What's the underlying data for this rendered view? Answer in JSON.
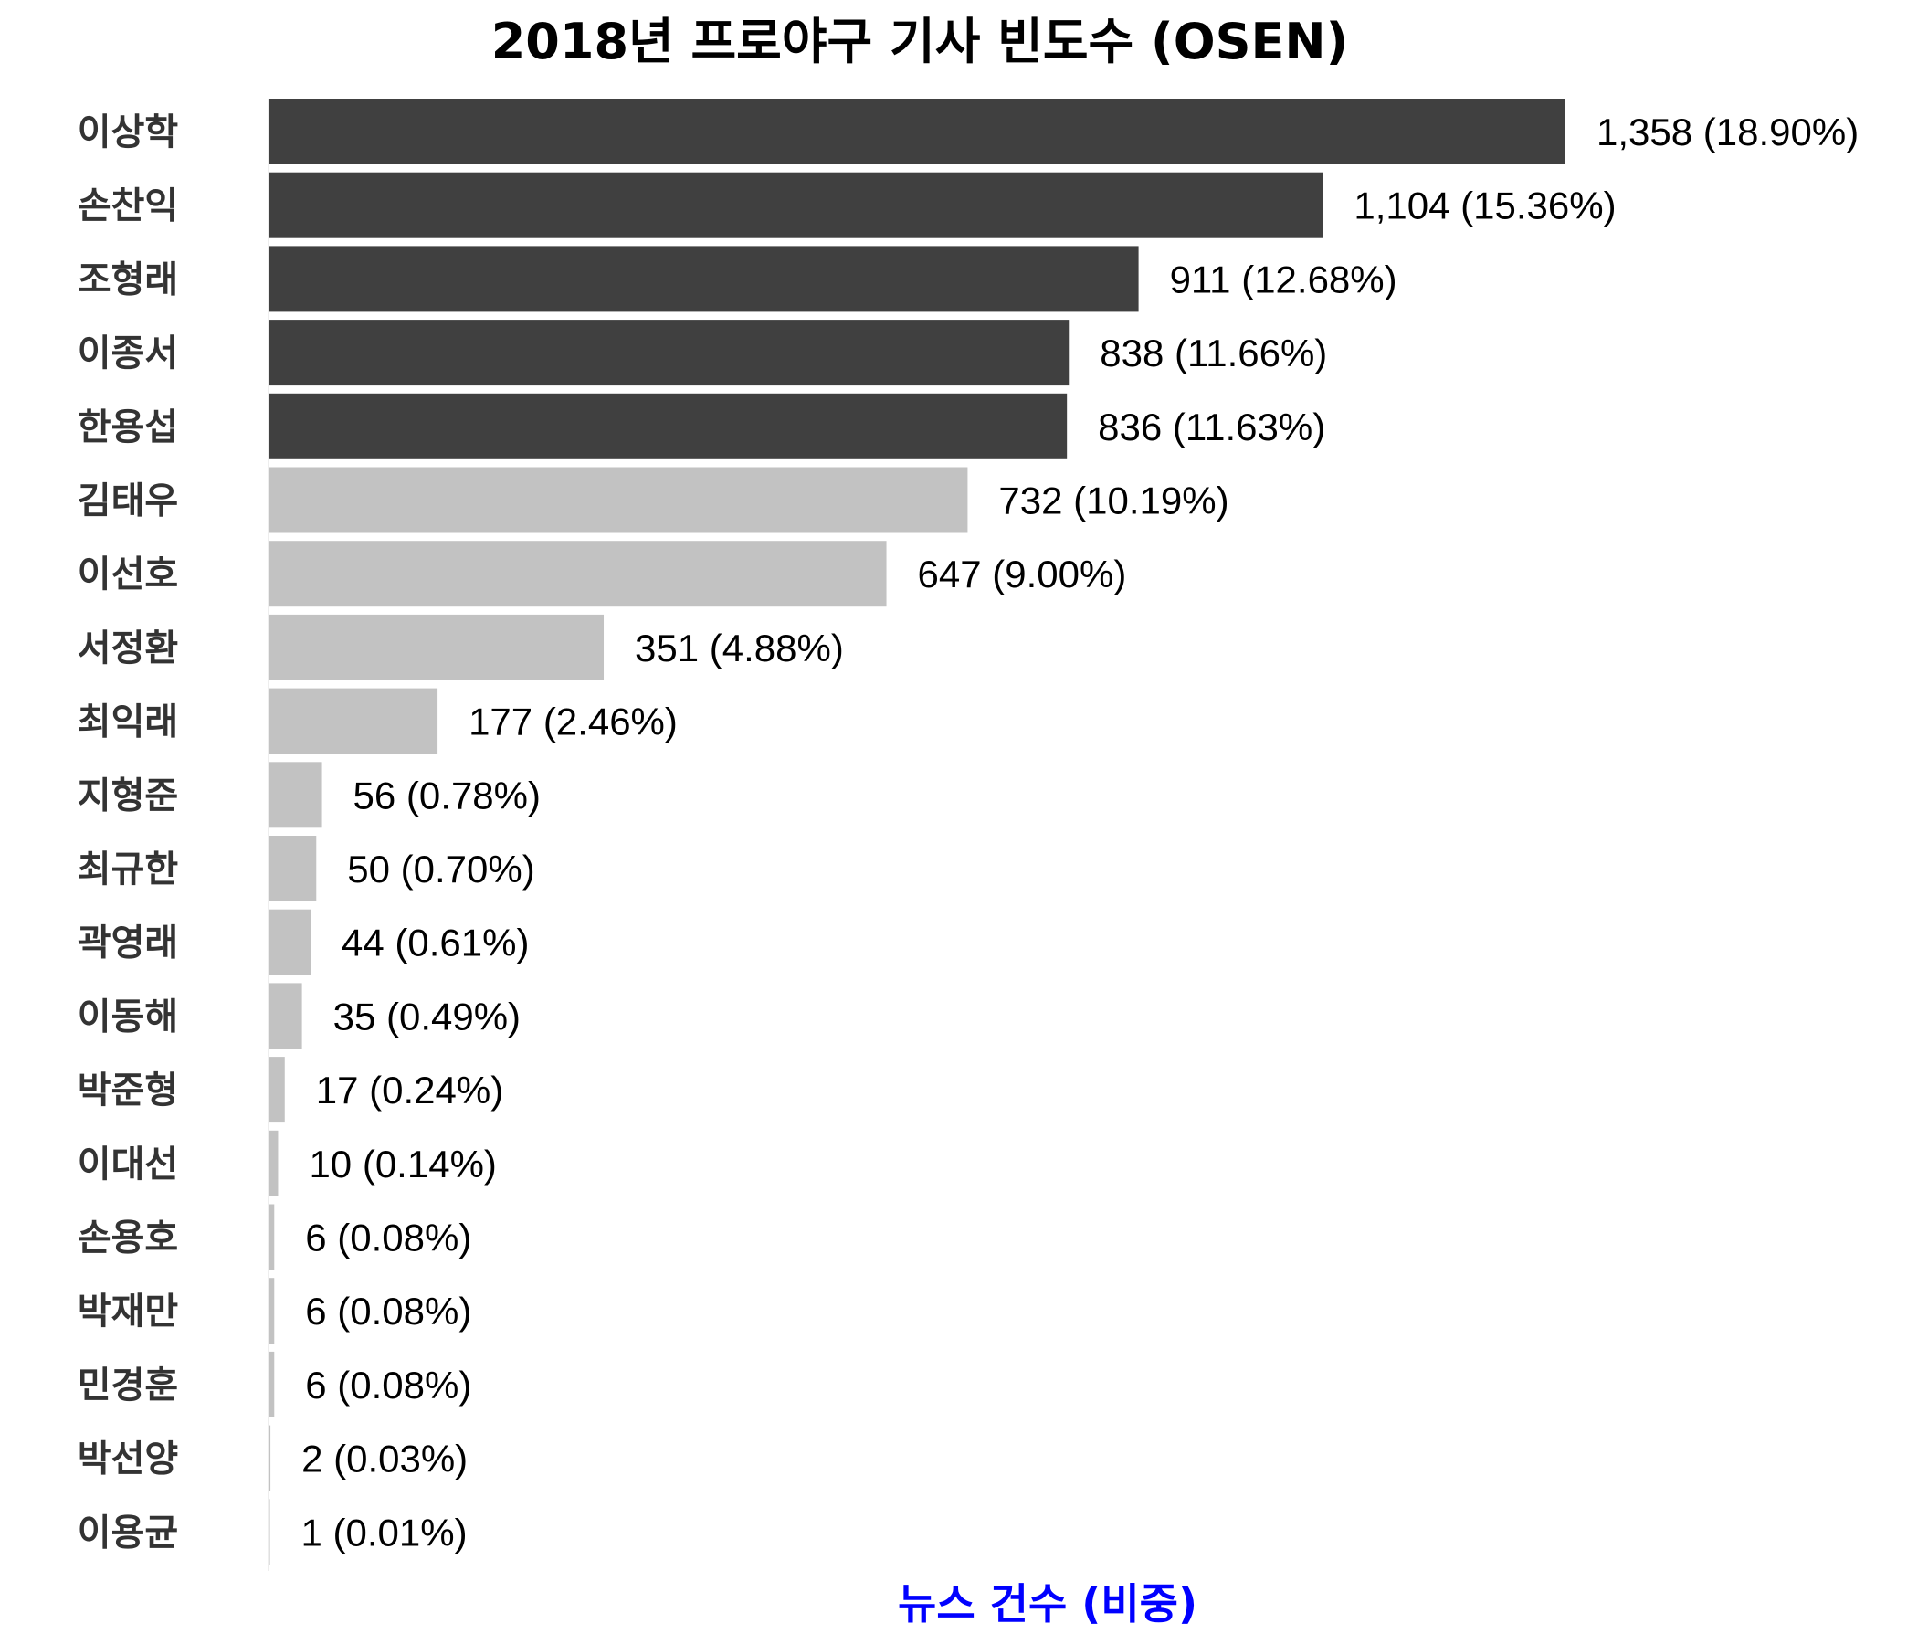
{
  "chart_data": {
    "type": "bar",
    "orientation": "horizontal",
    "title": "2018년 프로야구 기사 빈도수 (OSEN)",
    "xlabel": "뉴스 건수 (비중)",
    "ylabel": "",
    "xlim": [
      0,
      1358
    ],
    "grid": false,
    "legend": "none",
    "categories": [
      "이상학",
      "손찬익",
      "조형래",
      "이종서",
      "한용섭",
      "김태우",
      "이선호",
      "서정환",
      "최익래",
      "지형준",
      "최규한",
      "곽영래",
      "이동해",
      "박준형",
      "이대선",
      "손용호",
      "박재만",
      "민경훈",
      "박선양",
      "이용균"
    ],
    "values": [
      1358,
      1104,
      911,
      838,
      836,
      732,
      647,
      351,
      177,
      56,
      50,
      44,
      35,
      17,
      10,
      6,
      6,
      6,
      2,
      1
    ],
    "data_labels": [
      "1,358 (18.90%)",
      "1,104 (15.36%)",
      "911 (12.68%)",
      "838 (11.66%)",
      "836 (11.63%)",
      "732 (10.19%)",
      "647 (9.00%)",
      "351 (4.88%)",
      "177 (2.46%)",
      "56 (0.78%)",
      "50 (0.70%)",
      "44 (0.61%)",
      "35 (0.49%)",
      "17 (0.24%)",
      "10 (0.14%)",
      "6 (0.08%)",
      "6 (0.08%)",
      "6 (0.08%)",
      "2 (0.03%)",
      "1 (0.01%)"
    ],
    "highlight_top_n": 5,
    "colors": {
      "highlight": "#404040",
      "normal": "#c2c2c2",
      "xlabel": "#0000ff",
      "category_text": "#333333"
    }
  }
}
